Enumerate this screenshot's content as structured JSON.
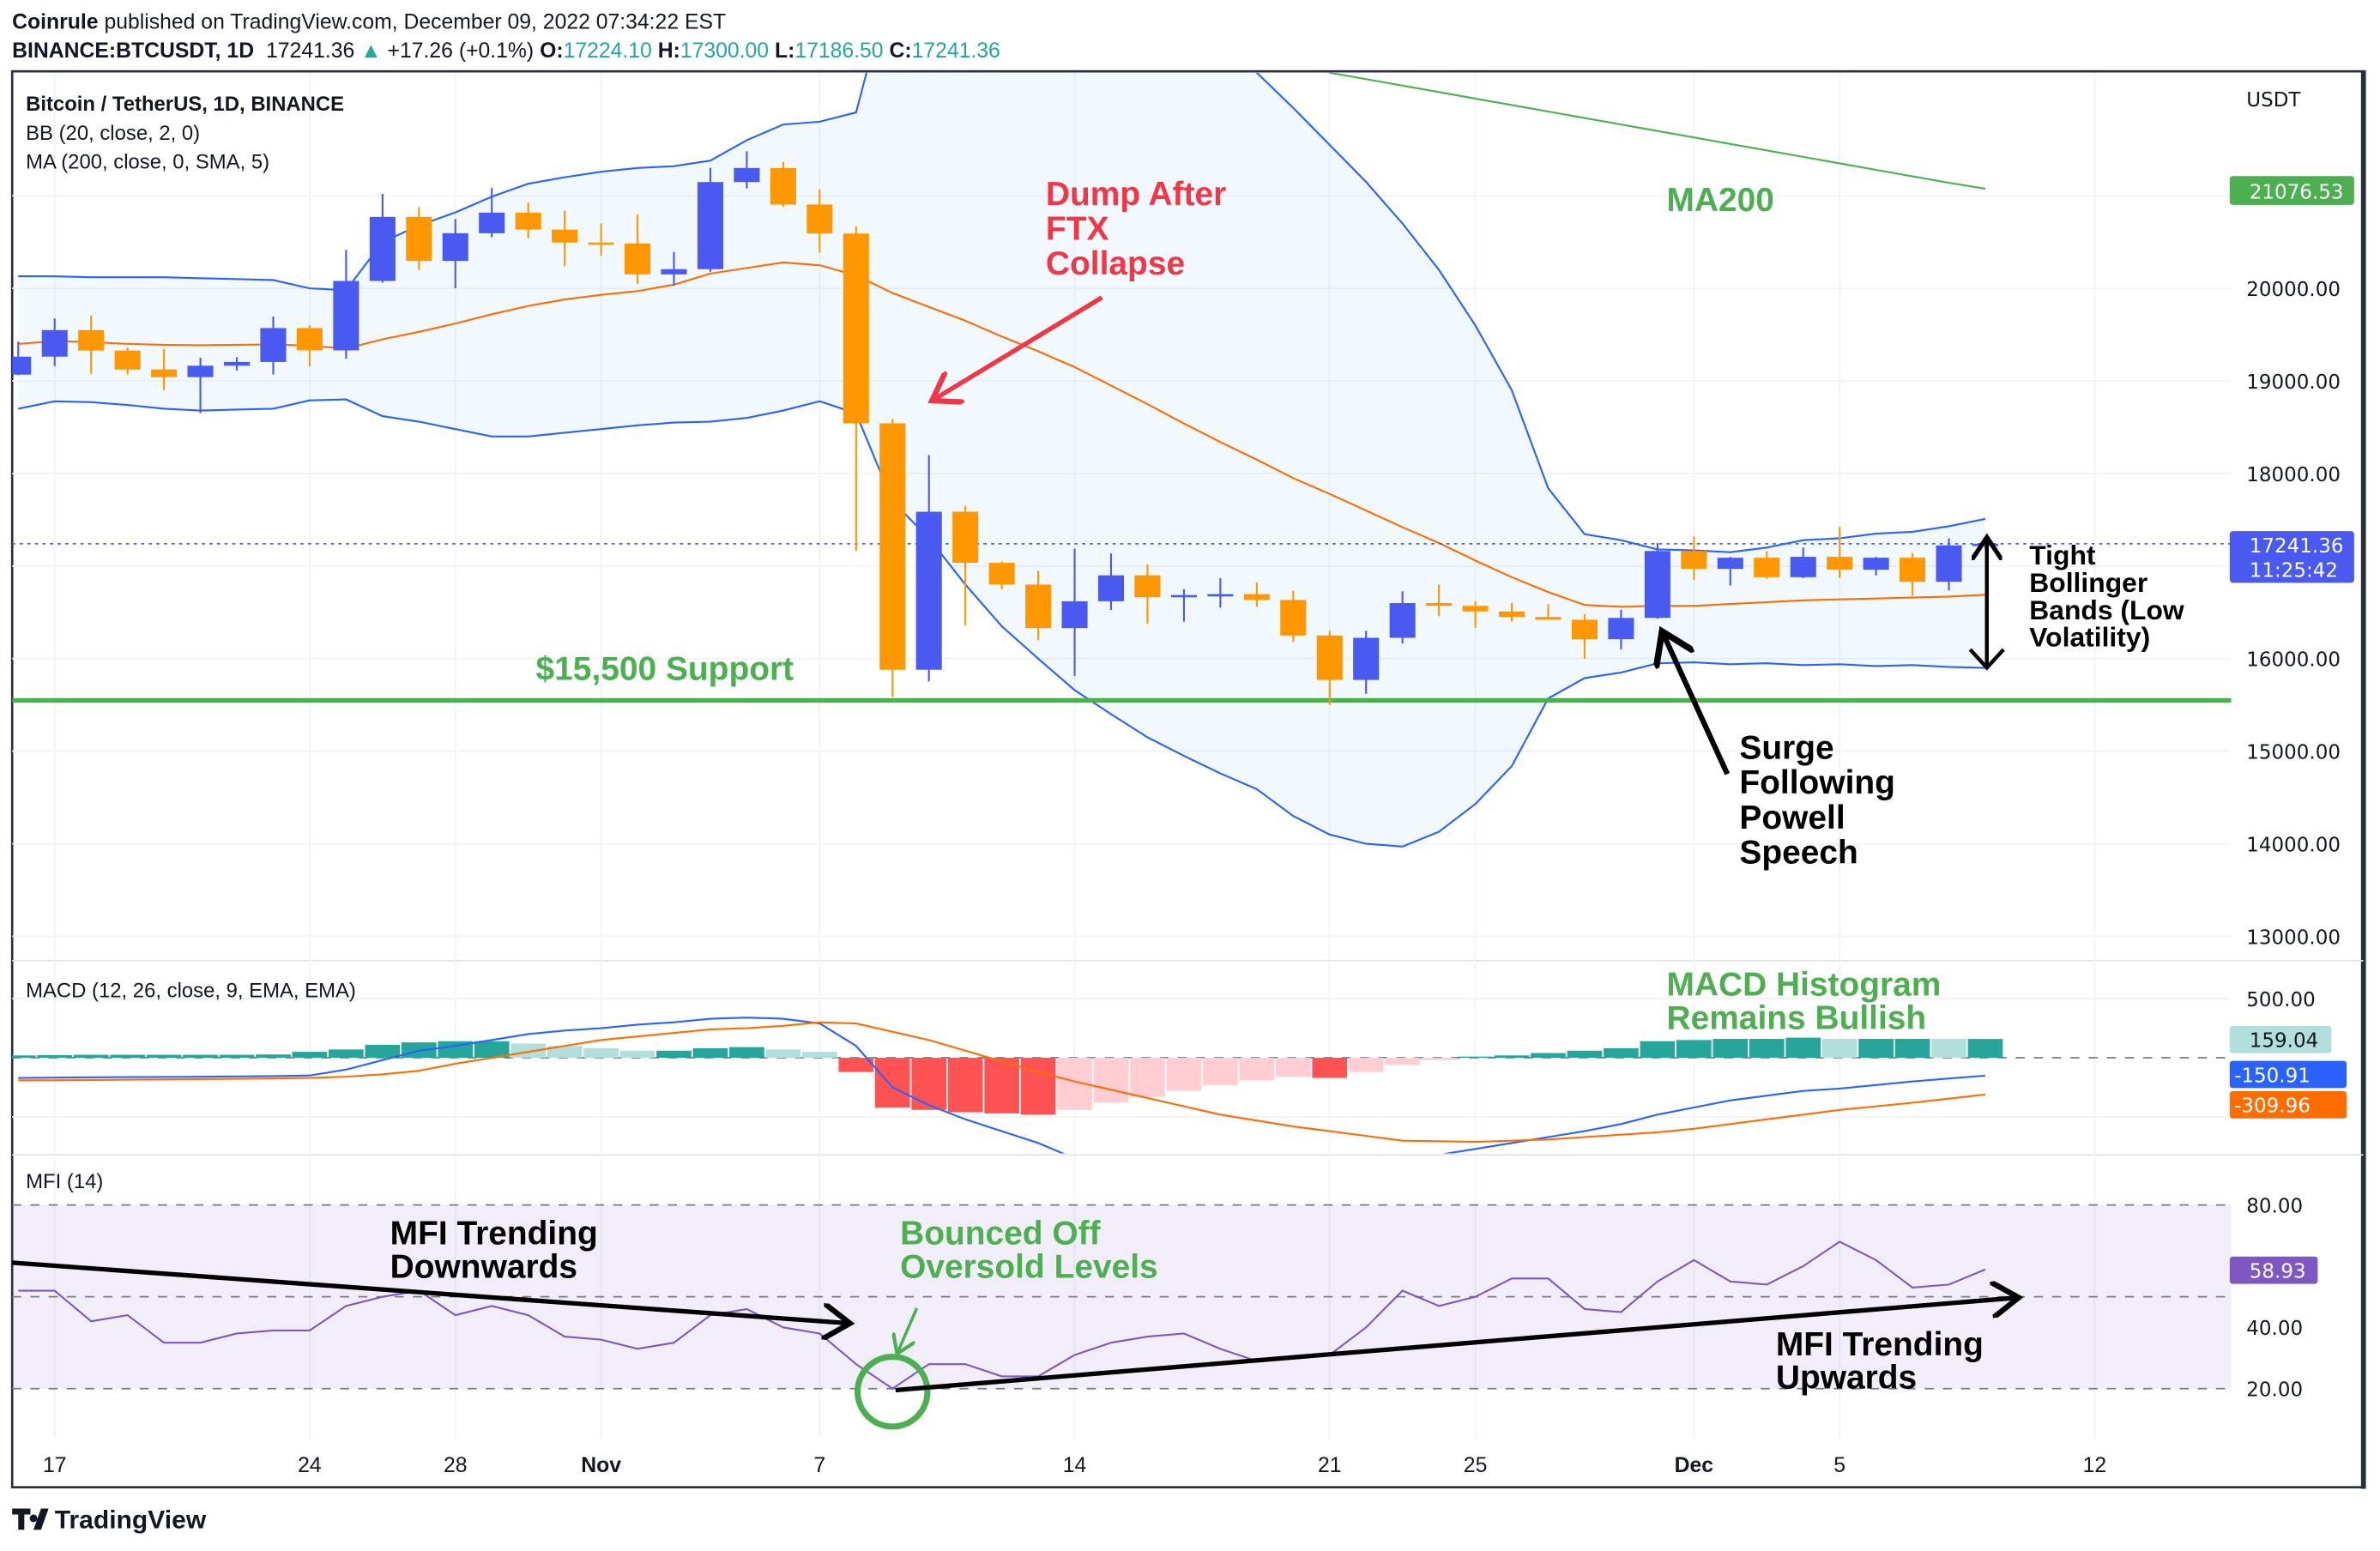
{
  "header": {
    "publisher": "Coinrule",
    "published": "published on TradingView.com, December 09, 2022 07:34:22 EST",
    "symbol": "BINANCE:BTCUSDT, 1D",
    "price": "17241.36",
    "change": "+17.26 (+0.1%)",
    "o_label": "O:",
    "o": "17224.10",
    "h_label": "H:",
    "h": "17300.00",
    "l_label": "L:",
    "l": "17186.50",
    "c_label": "C:",
    "c": "17241.36"
  },
  "legend": {
    "title": "Bitcoin / TetherUS, 1D, BINANCE",
    "bb": "BB (20, close, 2, 0)",
    "ma": "MA (200, close, 0, SMA, 5)",
    "macd": "MACD (12, 26, close, 9, EMA, EMA)",
    "mfi": "MFI (14)"
  },
  "axis": {
    "currency": "USDT",
    "price_ticks": [
      {
        "v": 20000,
        "label": "20000.00"
      },
      {
        "v": 19000,
        "label": "19000.00"
      },
      {
        "v": 18000,
        "label": "18000.00"
      },
      {
        "v": 16000,
        "label": "16000.00"
      },
      {
        "v": 15000,
        "label": "15000.00"
      },
      {
        "v": 14000,
        "label": "14000.00"
      },
      {
        "v": 13000,
        "label": "13000.00"
      }
    ],
    "macd_ticks": [
      {
        "v": 500,
        "label": "500.00"
      }
    ],
    "mfi_ticks": [
      {
        "v": 80,
        "label": "80.00"
      },
      {
        "v": 40,
        "label": "40.00"
      },
      {
        "v": 20,
        "label": "20.00"
      }
    ],
    "time_ticks": [
      {
        "label": "17",
        "date": "2022-10-17",
        "bold": false
      },
      {
        "label": "24",
        "date": "2022-10-24",
        "bold": false
      },
      {
        "label": "28",
        "date": "2022-10-28",
        "bold": false
      },
      {
        "label": "Nov",
        "date": "2022-11-01",
        "bold": true
      },
      {
        "label": "7",
        "date": "2022-11-07",
        "bold": false
      },
      {
        "label": "14",
        "date": "2022-11-14",
        "bold": false
      },
      {
        "label": "21",
        "date": "2022-11-21",
        "bold": false
      },
      {
        "label": "25",
        "date": "2022-11-25",
        "bold": false
      },
      {
        "label": "Dec",
        "date": "2022-12-01",
        "bold": true
      },
      {
        "label": "5",
        "date": "2022-12-05",
        "bold": false
      },
      {
        "label": "12",
        "date": "2022-12-12",
        "bold": false
      }
    ]
  },
  "badges": {
    "ma200": "21076.53",
    "last_price": "17241.36",
    "countdown": "11:25:42",
    "histogram": "159.04",
    "macd": "-150.91",
    "signal": "-309.96",
    "mfi": "58.93"
  },
  "annotations": {
    "dump": [
      "Dump After",
      "FTX",
      "Collapse"
    ],
    "ma200": "MA200",
    "support": "$15,500 Support",
    "tight": [
      "Tight",
      "Bollinger",
      "Bands (Low",
      "Volatility)"
    ],
    "surge": [
      "Surge",
      "Following",
      "Powell",
      "Speech"
    ],
    "macd_hist": [
      "MACD Histogram",
      "Remains Bullish"
    ],
    "mfi_down": [
      "MFI Trending",
      "Downwards"
    ],
    "bounce": [
      "Bounced Off",
      "Oversold Levels"
    ],
    "mfi_up": [
      "MFI Trending",
      "Upwards"
    ]
  },
  "footer": {
    "brand": "TradingView"
  },
  "colors": {
    "up": "#4a5af0",
    "down": "#ff9800",
    "bb_line": "#2962ff",
    "bb_fill": "#2196f3",
    "basis": "#ff6d00",
    "ma200": "#4caf50",
    "support": "#4caf50",
    "dump": "#f23645",
    "macd": "#2962ff",
    "signal": "#ff6d00",
    "hist_up_grow": "#26a69a",
    "hist_up_fall": "#b2dfdb",
    "hist_dn_grow": "#ff5252",
    "hist_dn_fall": "#ffcdd2",
    "mfi": "#7e57c2"
  },
  "chart_data": {
    "type": "candlestick",
    "start_date": "2022-10-16",
    "dates_end": "2022-12-09",
    "support_level": 15550,
    "price_ylim": [
      12800,
      22330
    ],
    "ohlc": [
      [
        19068,
        19424,
        19063,
        19262
      ],
      [
        19262,
        19676,
        19160,
        19549
      ],
      [
        19549,
        19707,
        19077,
        19328
      ],
      [
        19328,
        19360,
        19069,
        19124
      ],
      [
        19124,
        19346,
        18900,
        19041
      ],
      [
        19041,
        19250,
        18650,
        19164
      ],
      [
        19164,
        19257,
        19111,
        19205
      ],
      [
        19205,
        19695,
        19070,
        19571
      ],
      [
        19571,
        19601,
        19157,
        19330
      ],
      [
        19330,
        20415,
        19240,
        20080
      ],
      [
        20080,
        21020,
        20061,
        20772
      ],
      [
        20772,
        20878,
        20200,
        20296
      ],
      [
        20296,
        20750,
        20000,
        20595
      ],
      [
        20595,
        21085,
        20552,
        20818
      ],
      [
        20818,
        20930,
        20541,
        20635
      ],
      [
        20635,
        20840,
        20240,
        20495
      ],
      [
        20495,
        20700,
        20350,
        20485
      ],
      [
        20485,
        20800,
        20050,
        20151
      ],
      [
        20151,
        20393,
        20031,
        20207
      ],
      [
        20207,
        21302,
        20180,
        21148
      ],
      [
        21148,
        21480,
        21080,
        21300
      ],
      [
        21300,
        21365,
        20880,
        20905
      ],
      [
        20905,
        21069,
        20384,
        20592
      ],
      [
        20592,
        20670,
        17166,
        18542
      ],
      [
        18542,
        18590,
        15588,
        15880
      ],
      [
        15880,
        18199,
        15754,
        17587
      ],
      [
        17587,
        17650,
        16361,
        17035
      ],
      [
        17035,
        17050,
        16750,
        16800
      ],
      [
        16800,
        16950,
        16200,
        16330
      ],
      [
        16330,
        17190,
        15815,
        16620
      ],
      [
        16620,
        17135,
        16527,
        16900
      ],
      [
        16900,
        17015,
        16378,
        16663
      ],
      [
        16663,
        16750,
        16400,
        16687
      ],
      [
        16687,
        16868,
        16550,
        16697
      ],
      [
        16697,
        16823,
        16560,
        16634
      ],
      [
        16634,
        16735,
        16180,
        16250
      ],
      [
        16250,
        16300,
        15500,
        15770
      ],
      [
        15770,
        16300,
        15620,
        16225
      ],
      [
        16225,
        16727,
        16163,
        16600
      ],
      [
        16600,
        16800,
        16460,
        16570
      ],
      [
        16570,
        16620,
        16333,
        16510
      ],
      [
        16510,
        16600,
        16400,
        16450
      ],
      [
        16450,
        16590,
        16420,
        16420
      ],
      [
        16420,
        16480,
        16000,
        16210
      ],
      [
        16210,
        16528,
        16100,
        16440
      ],
      [
        16440,
        17250,
        16430,
        17163
      ],
      [
        17163,
        17320,
        16850,
        16970
      ],
      [
        16970,
        17100,
        16790,
        17090
      ],
      [
        17090,
        17160,
        16860,
        16880
      ],
      [
        16880,
        17200,
        16870,
        17100
      ],
      [
        17100,
        17425,
        16870,
        16960
      ],
      [
        16960,
        17100,
        16900,
        17090
      ],
      [
        17090,
        17140,
        16680,
        16830
      ],
      [
        16830,
        17300,
        16735,
        17224
      ],
      [
        17224,
        17300,
        17186,
        17241
      ]
    ],
    "bb_upper": [
      20130,
      20130,
      20120,
      20120,
      20120,
      20110,
      20100,
      20090,
      20000,
      19980,
      20500,
      20680,
      20820,
      20990,
      21130,
      21200,
      21260,
      21300,
      21320,
      21380,
      21600,
      21770,
      21800,
      21900,
      23400,
      24200,
      24500,
      24600,
      24600,
      24500,
      24300,
      23900,
      23300,
      22700,
      22330,
      21950,
      21550,
      21150,
      20700,
      20200,
      19600,
      18900,
      17840,
      17345,
      17280,
      17180,
      17170,
      17150,
      17200,
      17280,
      17300,
      17350,
      17370,
      17430,
      17510
    ],
    "bb_basis": [
      19400,
      19430,
      19420,
      19400,
      19390,
      19385,
      19390,
      19395,
      19380,
      19350,
      19450,
      19530,
      19620,
      19720,
      19810,
      19880,
      19930,
      19970,
      20040,
      20160,
      20220,
      20280,
      20250,
      20140,
      19950,
      19800,
      19650,
      19480,
      19320,
      19150,
      18950,
      18750,
      18540,
      18340,
      18150,
      17950,
      17780,
      17600,
      17420,
      17250,
      17060,
      16880,
      16720,
      16580,
      16560,
      16570,
      16570,
      16590,
      16610,
      16630,
      16640,
      16650,
      16660,
      16670,
      16690
    ],
    "bb_lower": [
      18700,
      18780,
      18770,
      18740,
      18700,
      18680,
      18690,
      18700,
      18790,
      18800,
      18620,
      18560,
      18480,
      18400,
      18400,
      18440,
      18480,
      18520,
      18550,
      18560,
      18600,
      18680,
      18780,
      18650,
      17700,
      17300,
      16800,
      16350,
      16000,
      15660,
      15400,
      15150,
      14950,
      14760,
      14590,
      14300,
      14100,
      14000,
      13970,
      14130,
      14430,
      14840,
      15570,
      15790,
      15850,
      15950,
      15960,
      15940,
      15950,
      15930,
      15940,
      15920,
      15930,
      15910,
      15900
    ],
    "ma200": [
      null,
      null,
      null,
      null,
      null,
      null,
      null,
      null,
      null,
      null,
      null,
      null,
      null,
      null,
      null,
      null,
      null,
      null,
      null,
      null,
      null,
      null,
      null,
      null,
      null,
      null,
      null,
      null,
      null,
      null,
      null,
      null,
      null,
      null,
      null,
      22500,
      22330,
      22260,
      22190,
      22120,
      22050,
      21980,
      21910,
      21840,
      21770,
      21700,
      21630,
      21560,
      21490,
      21420,
      21350,
      21280,
      21210,
      21140,
      21077
    ],
    "macd": [
      -170,
      -168,
      -165,
      -163,
      -162,
      -160,
      -158,
      -155,
      -150,
      -100,
      -20,
      60,
      100,
      150,
      200,
      230,
      250,
      280,
      300,
      330,
      340,
      330,
      290,
      100,
      -250,
      -400,
      -520,
      -620,
      -720,
      -850,
      -900,
      -930,
      -950,
      -960,
      -980,
      -990,
      -1000,
      -960,
      -900,
      -820,
      -770,
      -720,
      -670,
      -620,
      -560,
      -480,
      -420,
      -360,
      -320,
      -280,
      -260,
      -230,
      -200,
      -175,
      -150.91
    ],
    "signal": [
      -190,
      -190,
      -188,
      -185,
      -183,
      -180,
      -178,
      -175,
      -170,
      -160,
      -140,
      -110,
      -50,
      0,
      50,
      100,
      150,
      180,
      210,
      240,
      250,
      270,
      300,
      290,
      220,
      150,
      60,
      -30,
      -120,
      -200,
      -270,
      -340,
      -410,
      -480,
      -530,
      -580,
      -620,
      -660,
      -700,
      -705,
      -710,
      -700,
      -690,
      -670,
      -650,
      -630,
      -600,
      -560,
      -520,
      -480,
      -440,
      -410,
      -380,
      -345,
      -309.96
    ],
    "histogram": [
      20,
      22,
      25,
      25,
      25,
      25,
      25,
      28,
      50,
      70,
      110,
      130,
      140,
      140,
      120,
      100,
      80,
      60,
      60,
      80,
      90,
      70,
      50,
      -120,
      -420,
      -440,
      -460,
      -470,
      -480,
      -440,
      -380,
      -330,
      -280,
      -230,
      -190,
      -160,
      -170,
      -120,
      -60,
      -20,
      10,
      20,
      40,
      60,
      80,
      140,
      150,
      160,
      160,
      170,
      160,
      160,
      160,
      159,
      159.04
    ],
    "mfi": [
      52,
      52,
      42,
      44,
      35,
      35,
      38,
      39,
      39,
      47,
      50,
      52,
      44,
      47,
      44,
      37,
      36,
      33,
      35,
      44,
      46,
      40,
      38,
      28,
      20,
      28,
      28,
      24,
      24,
      31,
      35,
      37,
      38,
      33,
      29,
      30,
      31,
      40,
      52,
      47,
      50,
      56,
      56,
      46,
      45,
      55,
      62,
      55,
      54,
      60,
      68,
      62,
      53,
      54,
      58.93
    ],
    "mfi_levels": [
      80,
      50,
      20
    ],
    "macd_ylim": [
      -810,
      810
    ],
    "mfi_ylim": [
      7,
      92
    ]
  }
}
